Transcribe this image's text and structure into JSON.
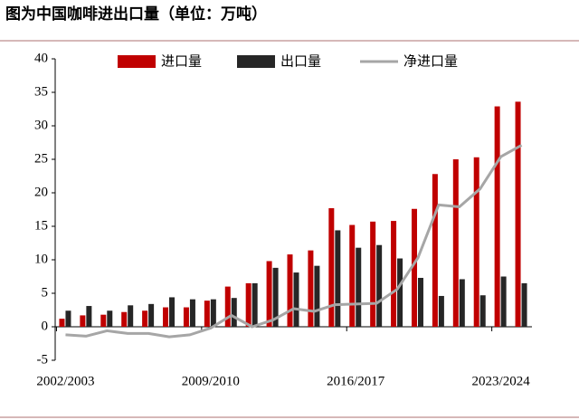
{
  "chart_data": {
    "type": "bar",
    "title": "图为中国咖啡进出口量（单位：万吨）",
    "categories": [
      "2002/2003",
      null,
      null,
      null,
      null,
      null,
      null,
      "2009/2010",
      null,
      null,
      null,
      null,
      null,
      null,
      "2016/2017",
      null,
      null,
      null,
      null,
      null,
      null,
      "2023/2024",
      null
    ],
    "series": [
      {
        "name": "进口量",
        "type": "bar",
        "color": "#c00000",
        "values": [
          1.2,
          1.7,
          1.8,
          2.2,
          2.4,
          2.9,
          2.9,
          3.9,
          6.0,
          6.5,
          9.8,
          10.8,
          11.4,
          17.7,
          15.2,
          15.7,
          15.8,
          17.6,
          22.8,
          25.0,
          25.3,
          32.9,
          33.6
        ]
      },
      {
        "name": "出口量",
        "type": "bar",
        "color": "#262626",
        "values": [
          2.4,
          3.1,
          2.4,
          3.2,
          3.4,
          4.4,
          4.1,
          4.1,
          4.3,
          6.5,
          8.8,
          8.1,
          9.1,
          14.4,
          11.8,
          12.2,
          10.2,
          7.3,
          4.6,
          7.1,
          4.7,
          7.5,
          6.5
        ]
      },
      {
        "name": "净进口量",
        "type": "line",
        "color": "#a6a6a6",
        "values": [
          -1.2,
          -1.4,
          -0.6,
          -1.0,
          -1.0,
          -1.5,
          -1.2,
          -0.2,
          1.7,
          0,
          1.0,
          2.7,
          2.3,
          3.3,
          3.4,
          3.5,
          5.6,
          10.3,
          18.2,
          17.9,
          20.6,
          25.4,
          27.1
        ]
      }
    ],
    "ylim": [
      -5,
      40
    ],
    "yticks": [
      -5,
      0,
      5,
      10,
      15,
      20,
      25,
      30,
      35,
      40
    ],
    "legend": "top"
  }
}
